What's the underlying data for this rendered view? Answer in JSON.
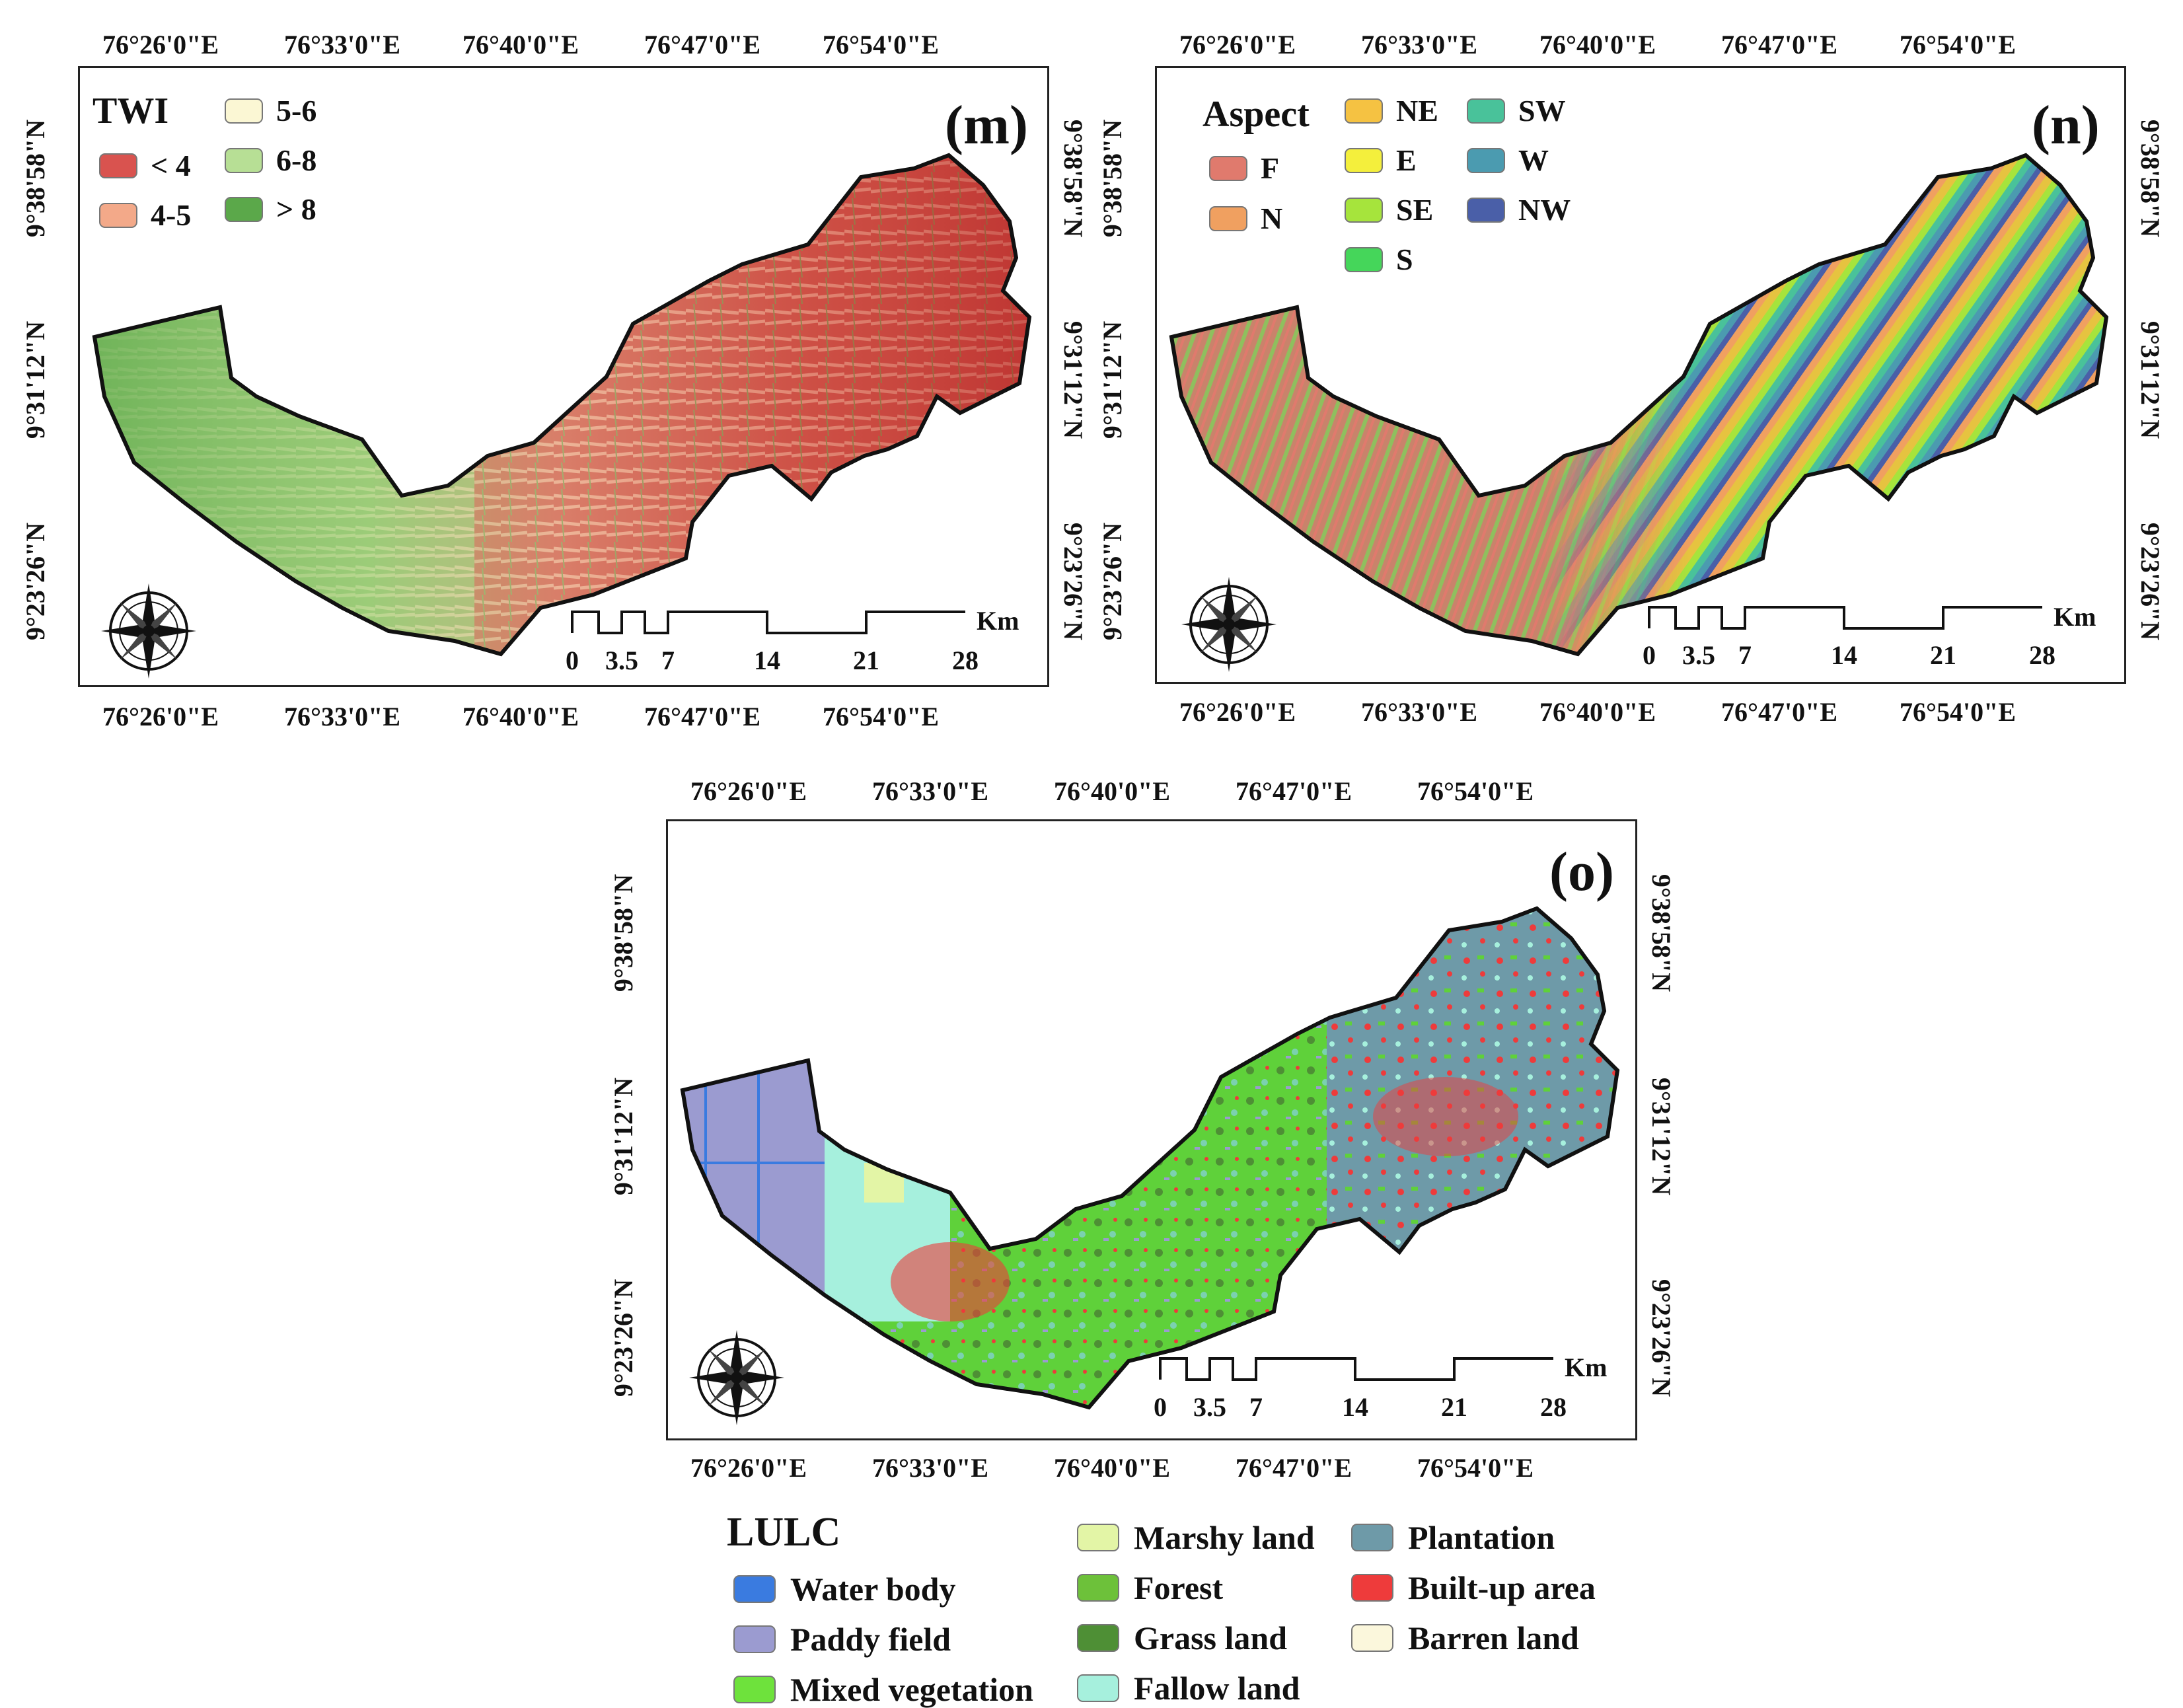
{
  "x_ticks": [
    "76°26'0\"E",
    "76°33'0\"E",
    "76°40'0\"E",
    "76°47'0\"E",
    "76°54'0\"E"
  ],
  "y_ticks": [
    "9°38'58\"N",
    "9°31'12\"N",
    "9°23'26\"N"
  ],
  "scale_bar": {
    "labels": [
      "0",
      "3.5",
      "7",
      "14",
      "21",
      "28"
    ],
    "unit": "Km"
  },
  "panel_m": {
    "label": "(m)",
    "legend_title": "TWI",
    "items": [
      {
        "label": "< 4",
        "color": "#d9534f"
      },
      {
        "label": "4-5",
        "color": "#f3a989"
      },
      {
        "label": "5-6",
        "color": "#fbf7d4"
      },
      {
        "label": "6-8",
        "color": "#b7df95"
      },
      {
        "label": "> 8",
        "color": "#5ba84a"
      }
    ]
  },
  "panel_n": {
    "label": "(n)",
    "legend_title": "Aspect",
    "items": [
      {
        "label": "F",
        "color": "#e07a6d"
      },
      {
        "label": "N",
        "color": "#f0a060"
      },
      {
        "label": "NE",
        "color": "#f5c242"
      },
      {
        "label": "E",
        "color": "#f4ef3c"
      },
      {
        "label": "SE",
        "color": "#a6e43c"
      },
      {
        "label": "S",
        "color": "#45d65a"
      },
      {
        "label": "SW",
        "color": "#49c29a"
      },
      {
        "label": "W",
        "color": "#4b9bb0"
      },
      {
        "label": "NW",
        "color": "#4a5fa8"
      }
    ]
  },
  "panel_o": {
    "label": "(o)",
    "legend_title": "LULC",
    "items": [
      {
        "label": "Water body",
        "color": "#3a7be0"
      },
      {
        "label": "Paddy field",
        "color": "#9b9bd0"
      },
      {
        "label": "Mixed vegetation",
        "color": "#6ee23c"
      },
      {
        "label": "Marshy land",
        "color": "#e3f5a6"
      },
      {
        "label": "Forest",
        "color": "#6dc13a"
      },
      {
        "label": "Grass land",
        "color": "#4e8f35"
      },
      {
        "label": "Fallow land",
        "color": "#a6f0dd"
      },
      {
        "label": "Plantation",
        "color": "#6e9aa8"
      },
      {
        "label": "Built-up area",
        "color": "#ee3b3b"
      },
      {
        "label": "Barren land",
        "color": "#fbf7dc"
      }
    ]
  }
}
